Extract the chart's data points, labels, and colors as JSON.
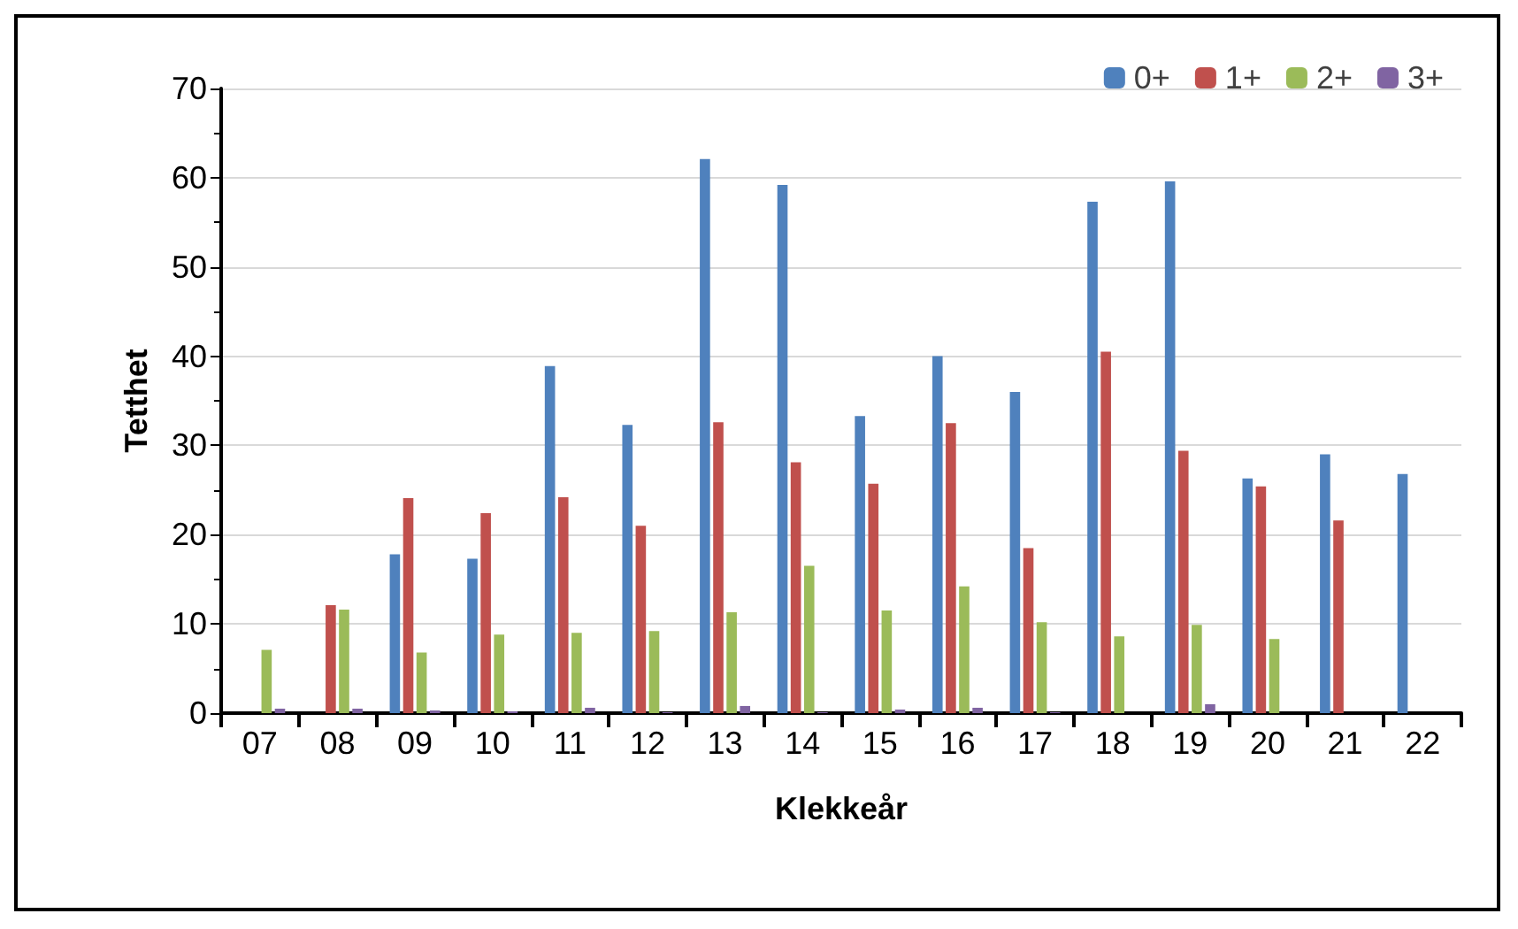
{
  "chart_data": {
    "type": "bar",
    "xlabel": "Klekkeår",
    "ylabel": "Tetthet",
    "categories": [
      "07",
      "08",
      "09",
      "10",
      "11",
      "12",
      "13",
      "14",
      "15",
      "16",
      "17",
      "18",
      "19",
      "20",
      "21",
      "22"
    ],
    "series": [
      {
        "name": "0+",
        "color": "#4f81bd",
        "values": [
          null,
          null,
          17.8,
          17.3,
          38.9,
          32.3,
          62.1,
          59.2,
          33.3,
          40,
          36,
          57.3,
          59.6,
          26.3,
          29,
          26.8
        ]
      },
      {
        "name": "1+",
        "color": "#c0504d",
        "values": [
          null,
          12.1,
          24.1,
          22.4,
          24.2,
          21,
          32.6,
          28.1,
          25.7,
          32.5,
          18.5,
          40.5,
          29.4,
          25.4,
          21.6,
          null
        ]
      },
      {
        "name": "2+",
        "color": "#9bbb59",
        "values": [
          7.1,
          11.6,
          6.8,
          8.8,
          9,
          9.2,
          11.3,
          16.5,
          11.5,
          14.2,
          10.2,
          8.6,
          9.9,
          8.3,
          null,
          null
        ]
      },
      {
        "name": "3+",
        "color": "#8064a2",
        "values": [
          0.5,
          0.5,
          0.3,
          0.2,
          0.6,
          0.1,
          0.8,
          0.1,
          0.4,
          0.6,
          0.1,
          null,
          1.0,
          null,
          null,
          null
        ]
      }
    ],
    "ylim": [
      0,
      70
    ],
    "yticks": [
      0,
      10,
      20,
      30,
      40,
      50,
      60,
      70
    ],
    "grid": "y",
    "legend": "top right"
  }
}
